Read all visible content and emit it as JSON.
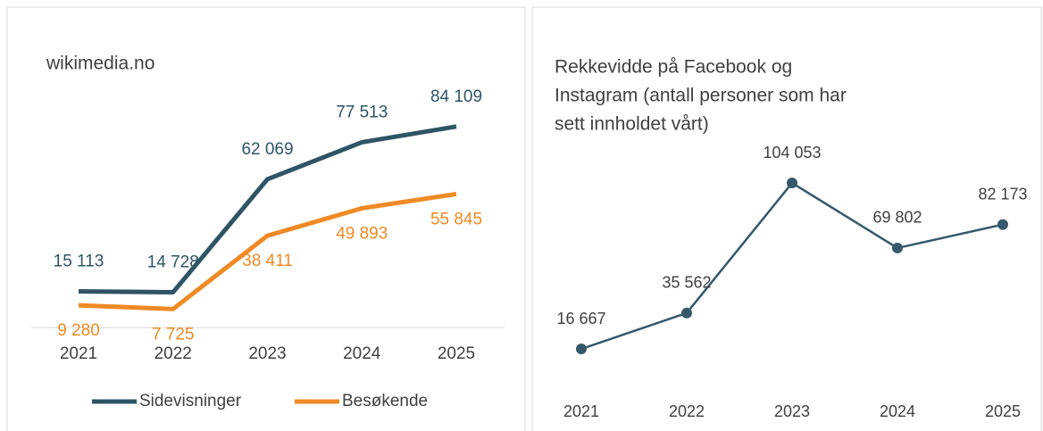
{
  "chart_data": [
    {
      "type": "line",
      "title": "wikimedia.no",
      "categories": [
        "2021",
        "2022",
        "2023",
        "2024",
        "2025"
      ],
      "series": [
        {
          "name": "Sidevisninger",
          "color": "#2e5466",
          "values": [
            15113,
            14728,
            62069,
            77513,
            84109
          ],
          "value_labels": [
            "15 113",
            "14 728",
            "62 069",
            "77 513",
            "84 109"
          ],
          "label_position": "above"
        },
        {
          "name": "Besøkende",
          "color": "#f08a24",
          "values": [
            9280,
            7725,
            38411,
            49893,
            55845
          ],
          "value_labels": [
            "9 280",
            "7 725",
            "38 411",
            "49 893",
            "55 845"
          ],
          "label_position": "below"
        }
      ],
      "ylim": [
        0,
        90000
      ],
      "legend": "bottom",
      "markers": false
    },
    {
      "type": "line",
      "title": [
        "Rekkevidde på Facebook og",
        "Instagram (antall personer som har",
        "sett innholdet vårt)"
      ],
      "categories": [
        "2021",
        "2022",
        "2023",
        "2024",
        "2025"
      ],
      "series": [
        {
          "color": "#35596b",
          "values": [
            16667,
            35562,
            104053,
            69802,
            82173
          ],
          "value_labels": [
            "16 667",
            "35 562",
            "104 053",
            "69 802",
            "82 173"
          ],
          "label_position": "above"
        }
      ],
      "ylim": [
        0,
        120000
      ],
      "markers": true
    }
  ]
}
